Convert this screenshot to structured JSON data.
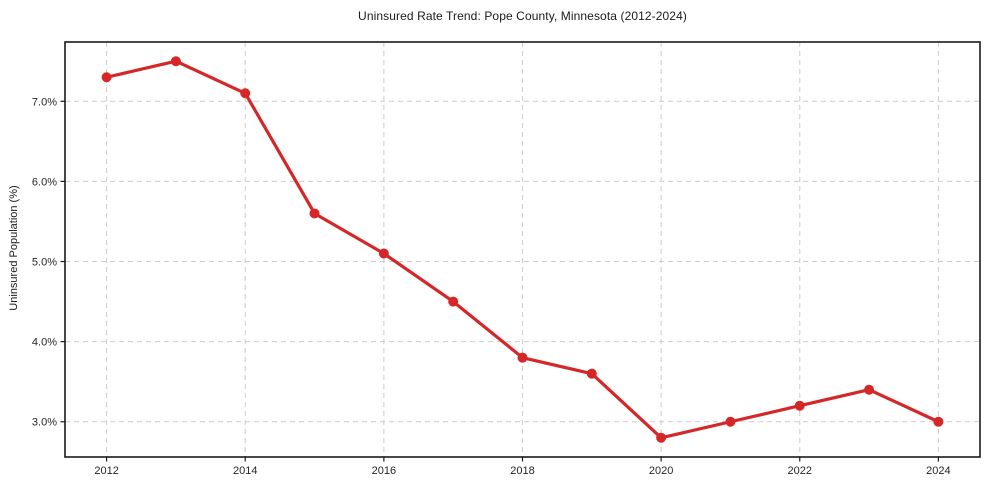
{
  "figure": {
    "title": "Uninsured Rate Trend: Pope County, Minnesota (2012-2024)",
    "y_axis_label": "Uninsured Population (%)"
  },
  "chart_data": {
    "type": "line",
    "title": "Uninsured Rate Trend: Pope County, Minnesota (2012-2024)",
    "xlabel": "",
    "ylabel": "Uninsured Population (%)",
    "x": [
      2012,
      2013,
      2014,
      2015,
      2016,
      2017,
      2018,
      2019,
      2020,
      2021,
      2022,
      2023,
      2024
    ],
    "values": [
      7.3,
      7.5,
      7.1,
      5.6,
      5.1,
      4.5,
      3.8,
      3.6,
      2.8,
      3.0,
      3.2,
      3.4,
      3.0
    ],
    "xlim": [
      2011.4,
      2024.6
    ],
    "ylim": [
      2.56,
      7.74
    ],
    "x_ticks": [
      2012,
      2014,
      2016,
      2018,
      2020,
      2022,
      2024
    ],
    "x_tick_labels": [
      "2012",
      "2014",
      "2016",
      "2018",
      "2020",
      "2022",
      "2024"
    ],
    "y_ticks": [
      3.0,
      4.0,
      5.0,
      6.0,
      7.0
    ],
    "y_tick_labels": [
      "3.0%",
      "4.0%",
      "5.0%",
      "6.0%",
      "7.0%"
    ],
    "grid": true,
    "grid_style": "dashed",
    "grid_color": "#cccccc",
    "line_color": "#d62728",
    "marker": "circle",
    "marker_color": "#d62728",
    "axis_frame_color": "#1a1a1a",
    "legend": "none"
  }
}
